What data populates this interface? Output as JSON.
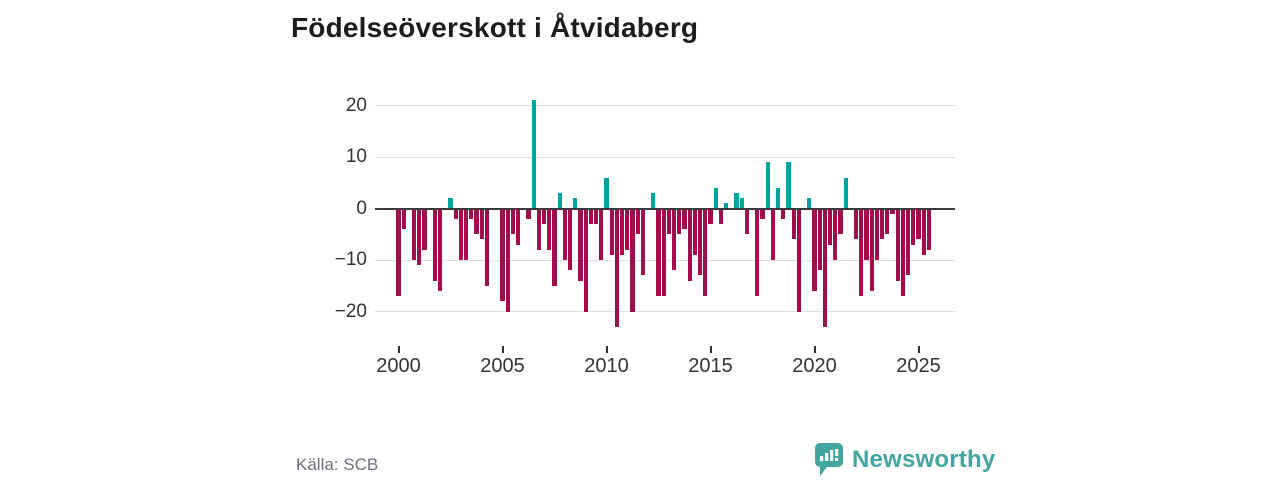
{
  "title": "Födelseöverskott i Åtvidaberg",
  "source": "Källa: SCB",
  "brand": {
    "name": "Newsworthy"
  },
  "colors": {
    "positive": "#00a49c",
    "negative": "#a30d4b",
    "brand_teal": "#44a49f",
    "axis": "#3a3a3a",
    "gridline": "#dedede",
    "tick_text": "#333333"
  },
  "chart_data": {
    "type": "bar",
    "title": "Födelseöverskott i Åtvidaberg",
    "x_unit": "quarter",
    "start": "2000-Q1",
    "end": "2025-Q3",
    "ylim": [
      -25,
      23
    ],
    "grid": true,
    "y_ticks": [
      20,
      10,
      0,
      -10,
      -20
    ],
    "y_tick_labels": [
      "20",
      "10",
      "0",
      "−10",
      "−20"
    ],
    "x_ticks": [
      2000,
      2005,
      2010,
      2015,
      2020,
      2025
    ],
    "x_tick_labels": [
      "2000",
      "2005",
      "2010",
      "2015",
      "2020",
      "2025"
    ],
    "series": [
      {
        "name": "Födelseöverskott",
        "values": [
          -17,
          -4,
          0,
          -10,
          -11,
          -8,
          0,
          -14,
          -16,
          0,
          2,
          -2,
          -10,
          -10,
          -2,
          -5,
          -6,
          -15,
          0,
          0,
          -18,
          -20,
          -5,
          -7,
          0,
          -2,
          21,
          -8,
          -3,
          -8,
          -15,
          3,
          -10,
          -12,
          2,
          -14,
          -20,
          -3,
          -3,
          -10,
          6,
          -9,
          -23,
          -9,
          -8,
          -20,
          -5,
          -13,
          0,
          3,
          -17,
          -17,
          -5,
          -12,
          -5,
          -4,
          -14,
          -9,
          -13,
          -17,
          -3,
          4,
          -3,
          1,
          0,
          3,
          2,
          -5,
          0,
          -17,
          -2,
          9,
          -10,
          4,
          -2,
          9,
          -6,
          -20,
          0,
          2,
          -16,
          -12,
          -23,
          -7,
          -10,
          -5,
          6,
          0,
          -6,
          -17,
          -10,
          -16,
          -10,
          -6,
          -5,
          -1,
          -14,
          -17,
          -13,
          -7,
          -6,
          -9,
          -8
        ]
      }
    ]
  }
}
